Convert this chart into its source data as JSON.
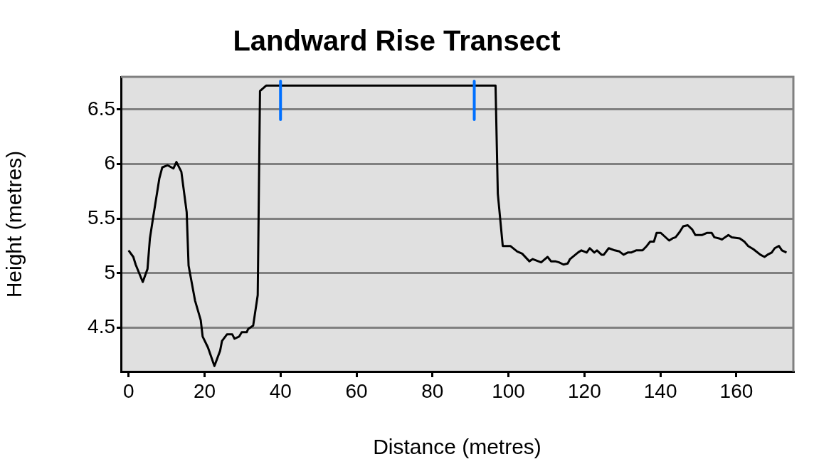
{
  "chart_data": {
    "type": "line",
    "title": "Landward Rise Transect",
    "xlabel": "Distance (metres)",
    "ylabel": "Height (metres)",
    "xlim": [
      -2,
      175
    ],
    "xticks": [
      0,
      20,
      40,
      60,
      80,
      100,
      120,
      140,
      160
    ],
    "ylim": [
      4.1,
      6.8
    ],
    "yticks": [
      4.5,
      5,
      5.5,
      6,
      6.5
    ],
    "grid": "y",
    "marker": "none",
    "line_style": "solid",
    "legend": false,
    "ref_lines": [
      {
        "axis": "x",
        "value": 40,
        "color": "#0070ff"
      },
      {
        "axis": "x",
        "value": 91,
        "color": "#0070ff"
      }
    ],
    "series": [
      {
        "color": "#000000",
        "x": [
          0,
          1.25,
          1.87,
          3.74,
          4.99,
          5.62,
          6.55,
          8.11,
          8.86,
          10.3,
          11.8,
          12.6,
          13.9,
          15.3,
          15.8,
          17.5,
          19.0,
          19.5,
          20.9,
          22.6,
          24.1,
          24.6,
          25.9,
          27.3,
          27.9,
          29.1,
          29.8,
          31.1,
          31.5,
          32.8,
          34.0,
          34.6,
          36.2,
          96.6,
          97.2,
          98.5,
          100.5,
          102.3,
          103.6,
          105.5,
          106.4,
          108.6,
          110.3,
          111.2,
          112.3,
          113.3,
          114.5,
          115.6,
          116.2,
          118.3,
          119.2,
          120.6,
          121.4,
          122.6,
          123.3,
          124.5,
          125.1,
          126.4,
          128.0,
          129.2,
          130.3,
          131.4,
          132.3,
          133.6,
          135.3,
          136.4,
          137.3,
          138.3,
          139.0,
          140.1,
          142.3,
          143.2,
          144.0,
          145.1,
          146.0,
          147.2,
          148.4,
          149.2,
          150.9,
          152.2,
          153.5,
          154.2,
          155.4,
          156.2,
          157.9,
          158.8,
          160.9,
          162.1,
          163.1,
          164.5,
          166.3,
          167.4,
          168.2,
          169.3,
          170.1,
          171.2,
          172.0,
          173.2
        ],
        "values": [
          5.21,
          5.15,
          5.08,
          4.92,
          5.04,
          5.32,
          5.53,
          5.87,
          5.97,
          5.99,
          5.96,
          6.02,
          5.93,
          5.56,
          5.07,
          4.75,
          4.57,
          4.42,
          4.32,
          4.15,
          4.29,
          4.38,
          4.44,
          4.44,
          4.4,
          4.42,
          4.46,
          4.46,
          4.49,
          4.52,
          4.8,
          6.67,
          6.72,
          6.72,
          5.73,
          5.25,
          5.25,
          5.2,
          5.18,
          5.11,
          5.13,
          5.1,
          5.15,
          5.11,
          5.11,
          5.1,
          5.08,
          5.09,
          5.13,
          5.19,
          5.21,
          5.19,
          5.23,
          5.19,
          5.21,
          5.17,
          5.17,
          5.23,
          5.21,
          5.2,
          5.17,
          5.19,
          5.19,
          5.21,
          5.21,
          5.25,
          5.29,
          5.29,
          5.37,
          5.37,
          5.3,
          5.32,
          5.33,
          5.38,
          5.43,
          5.44,
          5.4,
          5.35,
          5.35,
          5.37,
          5.37,
          5.33,
          5.32,
          5.31,
          5.35,
          5.33,
          5.32,
          5.29,
          5.25,
          5.22,
          5.17,
          5.15,
          5.17,
          5.19,
          5.23,
          5.25,
          5.21,
          5.19
        ]
      }
    ]
  }
}
